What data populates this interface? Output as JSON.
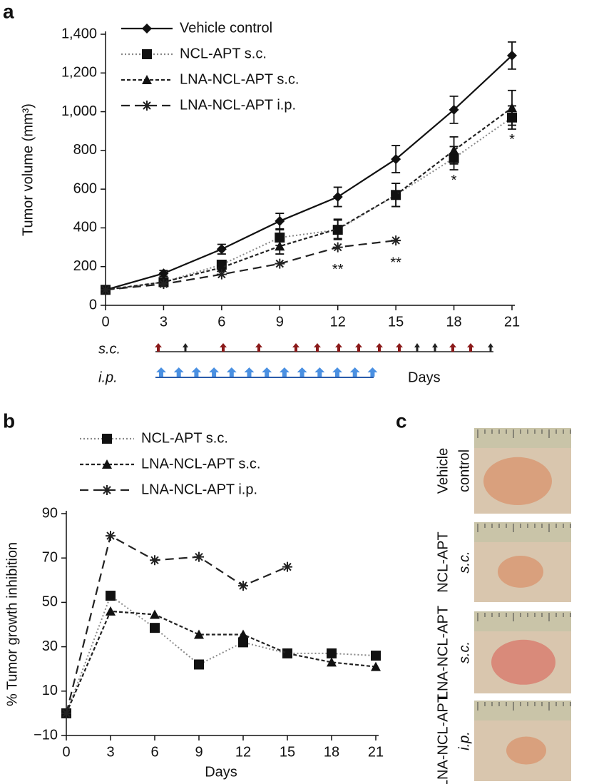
{
  "panels": [
    "a",
    "b",
    "c"
  ],
  "schedule_labels": [
    "s.c.",
    "i.p."
  ],
  "photos": [
    [
      "Vehicle",
      "control"
    ],
    [
      "NCL-APT",
      "s.c."
    ],
    [
      "LNA-NCL-APT",
      "s.c."
    ],
    [
      "LNA-NCL-APT",
      "i.p."
    ]
  ],
  "chart_data": [
    {
      "type": "line",
      "ylabel": "Tumor volume (mm³)",
      "xlabel": "Days",
      "x": [
        0,
        3,
        6,
        9,
        12,
        15,
        18,
        21
      ],
      "xlim": [
        0,
        21
      ],
      "xticks": [
        0,
        3,
        6,
        9,
        12,
        15,
        18,
        21
      ],
      "ylim": [
        0,
        1400
      ],
      "yticks": [
        0,
        200,
        400,
        600,
        800,
        {
          "value": 1000,
          "label": "1,000"
        },
        {
          "value": 1200,
          "label": "1,200"
        },
        {
          "value": 1400,
          "label": "1,400"
        }
      ],
      "series": [
        {
          "name": "Vehicle control",
          "color": "#111111",
          "dash": "solid",
          "marker": "diamond",
          "values": [
            80,
            165,
            290,
            435,
            560,
            755,
            1010,
            1290
          ],
          "errors": [
            15,
            15,
            25,
            40,
            50,
            70,
            70,
            70
          ]
        },
        {
          "name": "NCL-APT s.c.",
          "color": "#888888",
          "dash": "dotted",
          "marker": "square",
          "values": [
            80,
            120,
            210,
            350,
            390,
            570,
            760,
            970
          ],
          "errors": [
            15,
            15,
            20,
            40,
            50,
            60,
            60,
            60
          ]
        },
        {
          "name": "LNA-NCL-APT s.c.",
          "color": "#222222",
          "dash": "short",
          "marker": "triangle",
          "values": [
            80,
            120,
            195,
            305,
            395,
            570,
            800,
            1020
          ],
          "errors": [
            15,
            15,
            20,
            40,
            50,
            60,
            70,
            90
          ]
        },
        {
          "name": "LNA-NCL-APT i.p.",
          "color": "#222222",
          "dash": "long",
          "marker": "star",
          "values": [
            80,
            110,
            160,
            215,
            300,
            335,
            null,
            null
          ]
        }
      ],
      "annotations": [
        {
          "text": "**",
          "x": 12
        },
        {
          "text": "**",
          "x": 15
        },
        {
          "text": "*",
          "x": 18
        },
        {
          "text": "*",
          "x": 21
        }
      ]
    },
    {
      "type": "line",
      "ylabel": "% Tumor growth inhibition",
      "xlabel": "Days",
      "x": [
        0,
        3,
        6,
        9,
        12,
        15,
        18,
        21
      ],
      "xlim": [
        0,
        21
      ],
      "xticks": [
        0,
        3,
        6,
        9,
        12,
        15,
        18,
        21
      ],
      "ylim": [
        -10,
        90
      ],
      "yticks": [
        {
          "value": -10,
          "label": "−10"
        },
        10,
        30,
        50,
        70,
        90
      ],
      "series": [
        {
          "name": "NCL-APT s.c.",
          "color": "#888888",
          "dash": "dotted",
          "marker": "square",
          "values": [
            0,
            53,
            38.5,
            22,
            32,
            27,
            27,
            26
          ]
        },
        {
          "name": "LNA-NCL-APT s.c.",
          "color": "#222222",
          "dash": "short",
          "marker": "triangle",
          "values": [
            0,
            46,
            44.5,
            35.5,
            35.5,
            27,
            23,
            21
          ]
        },
        {
          "name": "LNA-NCL-APT i.p.",
          "color": "#222222",
          "dash": "long",
          "marker": "star",
          "values": [
            0,
            80,
            69,
            70.5,
            57.5,
            66,
            null,
            null
          ]
        }
      ]
    }
  ]
}
